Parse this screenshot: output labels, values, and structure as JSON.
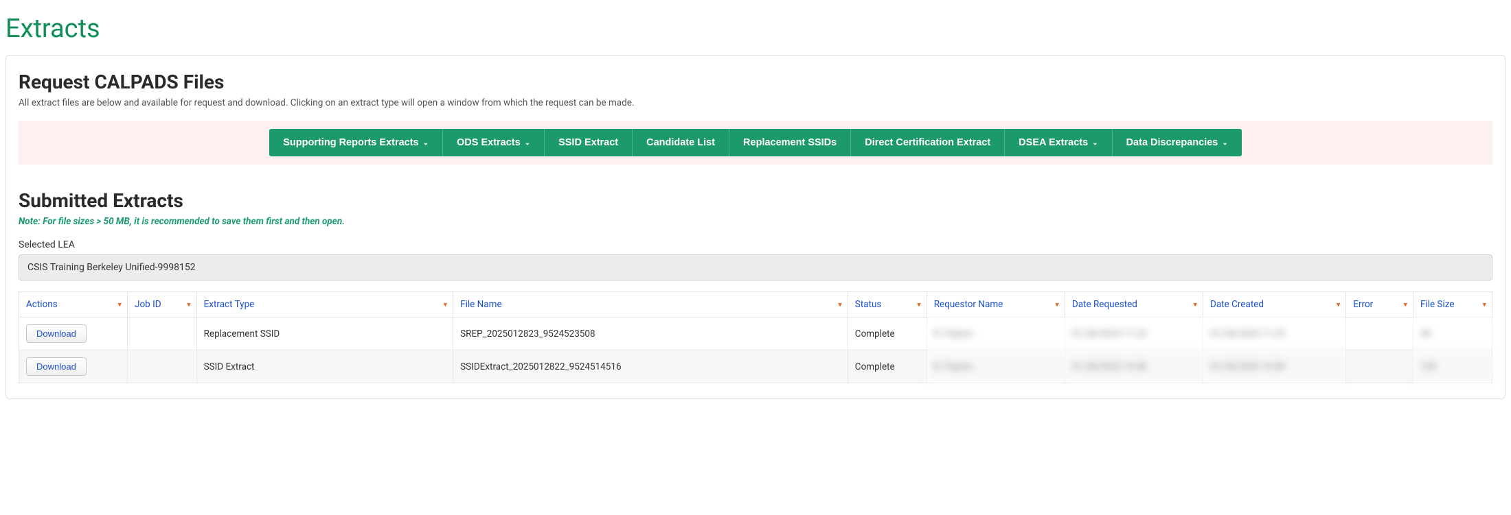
{
  "page_title": "Extracts",
  "request_section": {
    "heading": "Request CALPADS Files",
    "description": "All extract files are below and available for request and download. Clicking on an extract type will open a window from which the request can be made.",
    "nav_items": [
      {
        "label": "Supporting Reports Extracts",
        "has_dropdown": true
      },
      {
        "label": "ODS Extracts",
        "has_dropdown": true
      },
      {
        "label": "SSID Extract",
        "has_dropdown": false
      },
      {
        "label": "Candidate List",
        "has_dropdown": false
      },
      {
        "label": "Replacement SSIDs",
        "has_dropdown": false
      },
      {
        "label": "Direct Certification Extract",
        "has_dropdown": false
      },
      {
        "label": "DSEA Extracts",
        "has_dropdown": true
      },
      {
        "label": "Data Discrepancies",
        "has_dropdown": true
      }
    ]
  },
  "submitted_section": {
    "heading": "Submitted Extracts",
    "note": "Note: For file sizes > 50 MB, it is recommended to save them first and then open.",
    "lea_label": "Selected LEA",
    "lea_value": "CSIS Training Berkeley Unified-9998152"
  },
  "table": {
    "columns": [
      "Actions",
      "Job ID",
      "Extract Type",
      "File Name",
      "Status",
      "Requestor Name",
      "Date Requested",
      "Date Created",
      "Error",
      "File Size"
    ],
    "download_label": "Download",
    "rows": [
      {
        "extract_type": "Replacement SSID",
        "file_name": "SREP_2025012823_9524523508",
        "status": "Complete",
        "requestor_name": "R. Payton",
        "date_requested": "01/28/2025 11:23",
        "date_created": "01/28/2025 11:23",
        "error": "",
        "file_size": "3K"
      },
      {
        "extract_type": "SSID Extract",
        "file_name": "SSIDExtract_2025012822_9524514516",
        "status": "Complete",
        "requestor_name": "R. Payton",
        "date_requested": "01/28/2025 10:58",
        "date_created": "01/28/2025 10:58",
        "error": "",
        "file_size": "12K"
      }
    ]
  },
  "colors": {
    "brand_green": "#1d9a6c",
    "title_green": "#0f8f57",
    "link_blue": "#1a4fcf",
    "filter_orange": "#e26b2a",
    "nav_bg": "#fef0ef"
  }
}
